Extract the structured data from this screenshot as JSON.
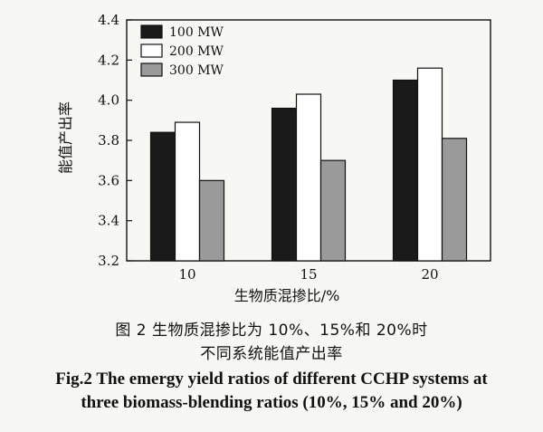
{
  "chart_data": {
    "type": "bar",
    "categories": [
      "10",
      "15",
      "20"
    ],
    "series": [
      {
        "name": "100 MW",
        "values": [
          3.84,
          3.96,
          4.1
        ],
        "color": "#1a1a1a"
      },
      {
        "name": "200 MW",
        "values": [
          3.89,
          4.03,
          4.16
        ],
        "color": "#ffffff"
      },
      {
        "name": "300 MW",
        "values": [
          3.6,
          3.7,
          3.81
        ],
        "color": "#9a9a9a"
      }
    ],
    "ylim": [
      3.2,
      4.4
    ],
    "yticks": [
      "3.2",
      "3.4",
      "3.6",
      "3.8",
      "4.0",
      "4.2",
      "4.4"
    ],
    "xlabel": "生物质混掺比/%",
    "ylabel": "能值产出率",
    "legend_position": "top-left",
    "grid": false
  },
  "caption": {
    "cn_line1": "图 2  生物质混掺比为 10%、15%和 20%时",
    "cn_line2": "不同系统能值产出率",
    "en_line1": "Fig.2 The emergy yield ratios of different CCHP systems at",
    "en_line2": "three biomass-blending ratios (10%, 15% and 20%)"
  }
}
